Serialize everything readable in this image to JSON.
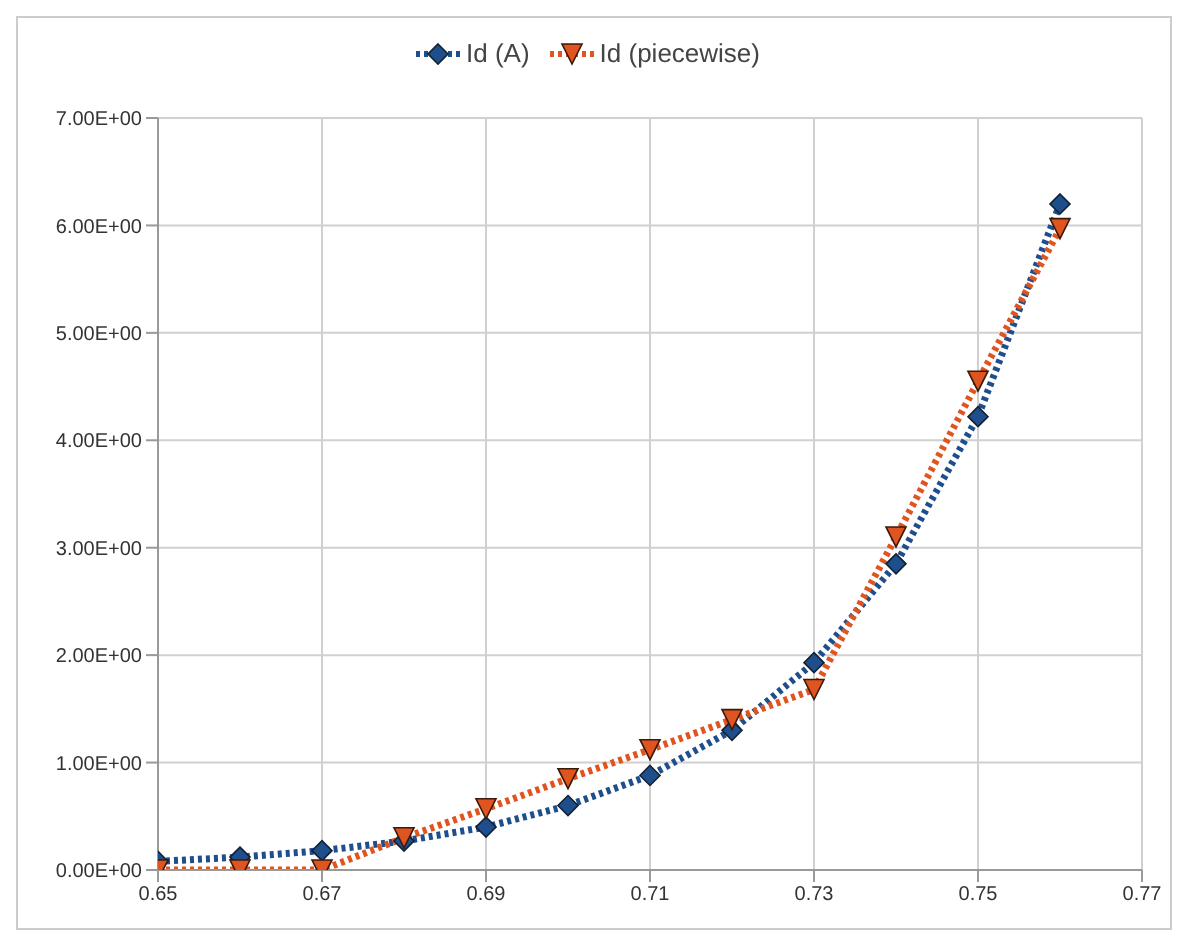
{
  "chart_data": {
    "type": "line",
    "x": [
      0.65,
      0.66,
      0.67,
      0.68,
      0.69,
      0.7,
      0.71,
      0.72,
      0.73,
      0.74,
      0.75,
      0.76
    ],
    "series": [
      {
        "name": "Id (A)",
        "color": "#1f4e8c",
        "marker": "diamond",
        "values": [
          0.08,
          0.12,
          0.18,
          0.27,
          0.4,
          0.6,
          0.88,
          1.3,
          1.93,
          2.85,
          4.22,
          6.2
        ]
      },
      {
        "name": "Id (piecewise)",
        "color": "#e0541f",
        "marker": "triangle",
        "values": [
          0,
          0,
          0,
          0.3,
          0.57,
          0.85,
          1.12,
          1.4,
          1.68,
          3.1,
          4.55,
          5.97
        ]
      }
    ],
    "xlim": [
      0.65,
      0.77
    ],
    "xticks": [
      0.65,
      0.67,
      0.69,
      0.71,
      0.73,
      0.75,
      0.77
    ],
    "ylim": [
      0,
      7
    ],
    "yticks": [
      {
        "value": 0,
        "label": "0.00E+00"
      },
      {
        "value": 1,
        "label": "1.00E+00"
      },
      {
        "value": 2,
        "label": "2.00E+00"
      },
      {
        "value": 3,
        "label": "3.00E+00"
      },
      {
        "value": 4,
        "label": "4.00E+00"
      },
      {
        "value": 5,
        "label": "5.00E+00"
      },
      {
        "value": 6,
        "label": "6.00E+00"
      },
      {
        "value": 7,
        "label": "7.00E+00"
      }
    ],
    "grid": true,
    "legend": "top",
    "line_style": "dotted"
  }
}
